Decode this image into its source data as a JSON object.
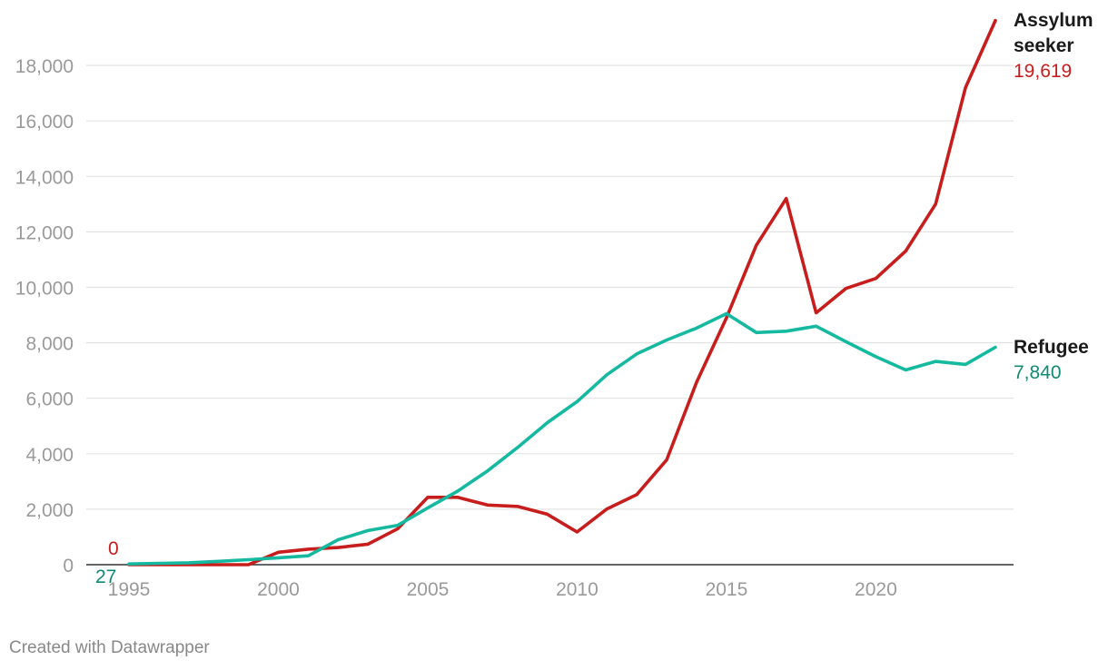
{
  "chart_data": {
    "type": "line",
    "title": "",
    "xlabel": "",
    "ylabel": "",
    "x": [
      1995,
      1996,
      1997,
      1998,
      1999,
      2000,
      2001,
      2002,
      2003,
      2004,
      2005,
      2006,
      2007,
      2008,
      2009,
      2010,
      2011,
      2012,
      2013,
      2014,
      2015,
      2016,
      2017,
      2018,
      2019,
      2020,
      2021,
      2022,
      2023,
      2024
    ],
    "xlim": [
      1995,
      2024
    ],
    "ylim": [
      0,
      19619
    ],
    "x_ticks": [
      "1995",
      "2000",
      "2005",
      "2010",
      "2015",
      "2020"
    ],
    "y_ticks": [
      "0",
      "2,000",
      "4,000",
      "6,000",
      "8,000",
      "10,000",
      "12,000",
      "14,000",
      "16,000",
      "18,000"
    ],
    "grid": true,
    "legend": "direct labels at line ends",
    "series": [
      {
        "name": "Assylum seeker",
        "name_lines": [
          "Assylum",
          "seeker"
        ],
        "color": "#c71e1d",
        "start_label": "0",
        "end_label": "19,619",
        "values": [
          0,
          0,
          0,
          0,
          0,
          450,
          560,
          620,
          740,
          1300,
          2430,
          2430,
          2150,
          2100,
          1820,
          1180,
          2010,
          2530,
          3780,
          6580,
          8900,
          11520,
          13200,
          9080,
          9960,
          10320,
          11310,
          13000,
          17200,
          19619
        ]
      },
      {
        "name": "Refugee",
        "name_lines": [
          "Refugee"
        ],
        "color": "#15b9a0",
        "start_label": "27",
        "end_label": "7,840",
        "values": [
          27,
          50,
          70,
          120,
          180,
          250,
          320,
          900,
          1230,
          1420,
          2050,
          2650,
          3380,
          4220,
          5120,
          5880,
          6850,
          7600,
          8100,
          8530,
          9050,
          8370,
          8420,
          8600,
          8040,
          7500,
          7020,
          7330,
          7220,
          7840
        ]
      }
    ],
    "label_colors": {
      "Refugee_start": "#0f8a74"
    }
  },
  "footer": {
    "credit": "Created with Datawrapper"
  }
}
